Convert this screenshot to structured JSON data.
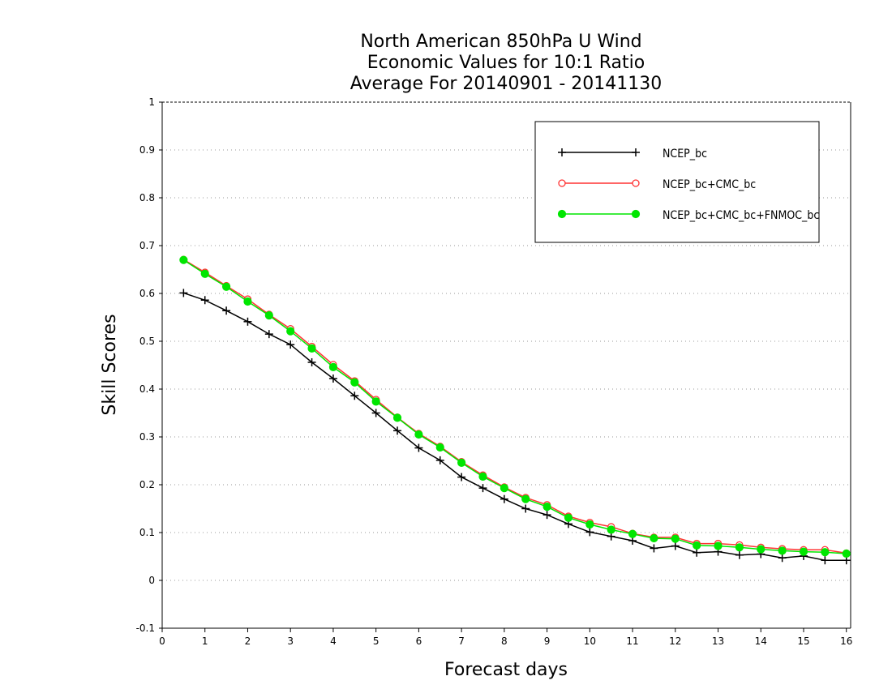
{
  "chart_data": {
    "type": "line",
    "title_lines": [
      "North American 850hPa U Wind",
      "Economic Values for 10:1 Ratio",
      "Average For 20140901 - 20141130"
    ],
    "xlabel": "Forecast days",
    "ylabel": "Skill Scores",
    "xlim": [
      0,
      16.1
    ],
    "ylim": [
      -0.1,
      1
    ],
    "xticks": [
      0,
      1,
      2,
      3,
      4,
      5,
      6,
      7,
      8,
      9,
      10,
      11,
      12,
      13,
      14,
      15,
      16
    ],
    "yticks": [
      -0.1,
      0,
      0.1,
      0.2,
      0.3,
      0.4,
      0.5,
      0.6,
      0.7,
      0.8,
      0.9,
      1
    ],
    "ytick_labels": [
      "-0.1",
      "0",
      "0.1",
      "0.2",
      "0.3",
      "0.4",
      "0.5",
      "0.6",
      "0.7",
      "0.8",
      "0.9",
      "1"
    ],
    "grid": "horizontal dotted",
    "legend_position": "top-right",
    "x": [
      0.5,
      1,
      1.5,
      2,
      2.5,
      3,
      3.5,
      4,
      4.5,
      5,
      5.5,
      6,
      6.5,
      7,
      7.5,
      8,
      8.5,
      9,
      9.5,
      10,
      10.5,
      11,
      11.5,
      12,
      12.5,
      13,
      13.5,
      14,
      14.5,
      15,
      15.5,
      16
    ],
    "series": [
      {
        "name": "NCEP_bc",
        "color": "#000000",
        "marker": "plus",
        "values": [
          0.601,
          0.586,
          0.564,
          0.541,
          0.515,
          0.493,
          0.456,
          0.422,
          0.386,
          0.35,
          0.313,
          0.277,
          0.251,
          0.216,
          0.193,
          0.17,
          0.15,
          0.137,
          0.118,
          0.101,
          0.092,
          0.083,
          0.067,
          0.072,
          0.058,
          0.06,
          0.053,
          0.055,
          0.047,
          0.051,
          0.042,
          0.042
        ]
      },
      {
        "name": "NCEP_bc+CMC_bc",
        "color": "#ff3333",
        "marker": "open-circle",
        "values": [
          0.671,
          0.644,
          0.616,
          0.588,
          0.556,
          0.526,
          0.489,
          0.451,
          0.417,
          0.378,
          0.341,
          0.307,
          0.28,
          0.248,
          0.22,
          0.195,
          0.173,
          0.158,
          0.134,
          0.121,
          0.112,
          0.098,
          0.09,
          0.09,
          0.077,
          0.077,
          0.074,
          0.069,
          0.066,
          0.064,
          0.064,
          0.057
        ]
      },
      {
        "name": "NCEP_bc+CMC_bc+FNMOC_bc",
        "color": "#00e600",
        "marker": "filled-circle",
        "values": [
          0.67,
          0.641,
          0.614,
          0.583,
          0.554,
          0.521,
          0.485,
          0.446,
          0.414,
          0.374,
          0.34,
          0.305,
          0.278,
          0.246,
          0.217,
          0.193,
          0.17,
          0.154,
          0.131,
          0.117,
          0.106,
          0.097,
          0.088,
          0.087,
          0.073,
          0.072,
          0.069,
          0.065,
          0.062,
          0.06,
          0.059,
          0.056
        ]
      }
    ]
  }
}
